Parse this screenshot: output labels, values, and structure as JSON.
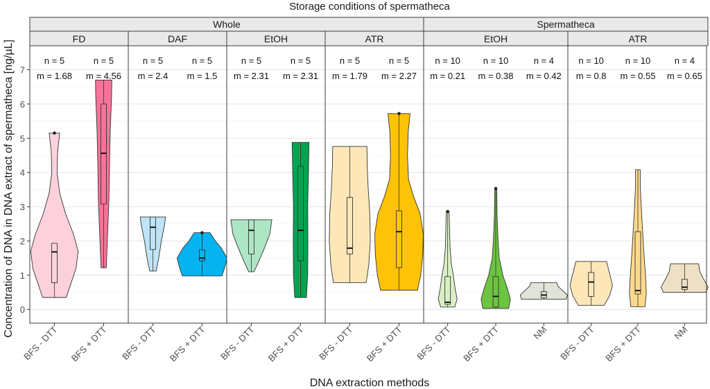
{
  "chart_data": {
    "type": "violin",
    "title": "Storage conditions of spermatheca",
    "xlabel": "DNA extraction methods",
    "ylabel": "Concentration of DNA in DNA extract of spermatheca  [ng/µL]",
    "ylim": [
      -0.4,
      7.7
    ],
    "yticks": [
      0,
      1,
      2,
      3,
      4,
      5,
      6,
      7
    ],
    "grid": true,
    "groups": [
      {
        "label": "Whole",
        "panels": [
          "FD",
          "DAF",
          "EtOH",
          "ATR"
        ]
      },
      {
        "label": "Spermatheca",
        "panels": [
          "EtOH",
          "ATR"
        ]
      }
    ],
    "panels": [
      {
        "group": "Whole",
        "label": "FD",
        "series": [
          {
            "method": "BFS - DTT",
            "n_label": "n = 5",
            "m_label": "m = 1.68",
            "fill": "#fcd1dc",
            "min": 0.35,
            "max": 5.15,
            "q1": 0.78,
            "median": 1.68,
            "q3": 1.93,
            "wlo": 0.35,
            "whi": 1.93,
            "outliers": [
              5.15
            ],
            "profile": [
              [
                0.35,
                0.45
              ],
              [
                0.7,
                0.6
              ],
              [
                1.2,
                0.82
              ],
              [
                1.7,
                0.9
              ],
              [
                2.2,
                0.72
              ],
              [
                2.8,
                0.42
              ],
              [
                3.4,
                0.2
              ],
              [
                4.0,
                0.1
              ],
              [
                4.6,
                0.12
              ],
              [
                5.15,
                0.2
              ]
            ]
          },
          {
            "method": "BFS + DTT",
            "n_label": "n = 5",
            "m_label": "m = 4.56",
            "fill": "#f77399",
            "min": 1.22,
            "max": 6.7,
            "q1": 3.08,
            "median": 4.56,
            "q3": 6.0,
            "wlo": 1.22,
            "whi": 6.7,
            "outliers": [],
            "profile": [
              [
                1.22,
                0.1
              ],
              [
                2.2,
                0.15
              ],
              [
                3.2,
                0.2
              ],
              [
                4.2,
                0.22
              ],
              [
                5.2,
                0.25
              ],
              [
                6.2,
                0.3
              ],
              [
                6.7,
                0.31
              ]
            ]
          }
        ]
      },
      {
        "group": "Whole",
        "label": "DAF",
        "series": [
          {
            "method": "BFS - DTT",
            "n_label": "n = 5",
            "m_label": "m = 2.4",
            "fill": "#bfe3f7",
            "min": 1.12,
            "max": 2.7,
            "q1": 1.75,
            "median": 2.4,
            "q3": 2.7,
            "wlo": 1.12,
            "whi": 2.7,
            "outliers": [],
            "profile": [
              [
                1.12,
                0.12
              ],
              [
                1.5,
                0.22
              ],
              [
                2.0,
                0.32
              ],
              [
                2.5,
                0.45
              ],
              [
                2.7,
                0.48
              ]
            ]
          },
          {
            "method": "BFS + DTT",
            "n_label": "n = 5",
            "m_label": "m = 1.5",
            "fill": "#04b3ef",
            "min": 0.98,
            "max": 2.24,
            "q1": 1.42,
            "median": 1.5,
            "q3": 1.74,
            "wlo": 0.98,
            "whi": 2.24,
            "outliers": [
              2.24
            ],
            "profile": [
              [
                0.98,
                0.75
              ],
              [
                1.2,
                0.85
              ],
              [
                1.5,
                0.95
              ],
              [
                1.8,
                0.72
              ],
              [
                2.0,
                0.5
              ],
              [
                2.24,
                0.3
              ]
            ]
          }
        ]
      },
      {
        "group": "Whole",
        "label": "EtOH",
        "series": [
          {
            "method": "BFS - DTT",
            "n_label": "n = 5",
            "m_label": "m = 2.31",
            "fill": "#aee6c5",
            "min": 1.1,
            "max": 2.62,
            "q1": 1.62,
            "median": 2.31,
            "q3": 2.62,
            "wlo": 1.1,
            "whi": 2.62,
            "outliers": [],
            "profile": [
              [
                1.1,
                0.1
              ],
              [
                1.4,
                0.28
              ],
              [
                1.8,
                0.5
              ],
              [
                2.2,
                0.7
              ],
              [
                2.62,
                0.78
              ]
            ]
          },
          {
            "method": "BFS + DTT",
            "n_label": "n = 5",
            "m_label": "m = 2.31",
            "fill": "#03a451",
            "min": 0.35,
            "max": 4.88,
            "q1": 1.42,
            "median": 2.31,
            "q3": 4.18,
            "wlo": 0.35,
            "whi": 4.88,
            "outliers": [],
            "profile": [
              [
                0.35,
                0.22
              ],
              [
                1.0,
                0.27
              ],
              [
                2.0,
                0.28
              ],
              [
                3.0,
                0.27
              ],
              [
                4.0,
                0.3
              ],
              [
                4.88,
                0.32
              ]
            ]
          }
        ]
      },
      {
        "group": "Whole",
        "label": "ATR",
        "series": [
          {
            "method": "BFS - DTT",
            "n_label": "n = 5",
            "m_label": "m = 1.79",
            "fill": "#fde7b8",
            "min": 0.78,
            "max": 4.76,
            "q1": 1.62,
            "median": 1.79,
            "q3": 3.27,
            "wlo": 0.78,
            "whi": 4.76,
            "outliers": [],
            "profile": [
              [
                0.78,
                0.62
              ],
              [
                1.3,
                0.72
              ],
              [
                2.0,
                0.78
              ],
              [
                2.8,
                0.76
              ],
              [
                3.5,
                0.7
              ],
              [
                4.2,
                0.66
              ],
              [
                4.76,
                0.65
              ]
            ]
          },
          {
            "method": "BFS + DTT",
            "n_label": "n = 5",
            "m_label": "m = 2.27",
            "fill": "#fec306",
            "min": 0.56,
            "max": 5.72,
            "q1": 1.22,
            "median": 2.27,
            "q3": 2.88,
            "wlo": 0.56,
            "whi": 5.72,
            "outliers": [
              5.72
            ],
            "profile": [
              [
                0.56,
                0.7
              ],
              [
                1.0,
                0.82
              ],
              [
                1.6,
                0.9
              ],
              [
                2.2,
                0.92
              ],
              [
                2.8,
                0.8
              ],
              [
                3.3,
                0.55
              ],
              [
                3.8,
                0.36
              ],
              [
                4.5,
                0.32
              ],
              [
                5.2,
                0.35
              ],
              [
                5.72,
                0.42
              ]
            ]
          }
        ]
      },
      {
        "group": "Spermatheca",
        "label": "EtOH",
        "series": [
          {
            "method": "BFS - DTT",
            "n_label": "n = 10",
            "m_label": "m = 0.21",
            "fill": "#d9f0c6",
            "min": 0.07,
            "max": 2.86,
            "q1": 0.15,
            "median": 0.21,
            "q3": 0.96,
            "wlo": 0.07,
            "whi": 2.86,
            "outliers": [
              2.86
            ],
            "profile": [
              [
                0.07,
                0.3
              ],
              [
                0.3,
                0.4
              ],
              [
                0.6,
                0.32
              ],
              [
                1.0,
                0.24
              ],
              [
                1.3,
                0.16
              ],
              [
                1.8,
                0.1
              ],
              [
                2.3,
                0.08
              ],
              [
                2.86,
                0.06
              ]
            ]
          },
          {
            "method": "BFS + DTT",
            "n_label": "n = 10",
            "m_label": "m = 0.38",
            "fill": "#6dc440",
            "min": 0.03,
            "max": 3.53,
            "q1": 0.07,
            "median": 0.38,
            "q3": 0.96,
            "wlo": 0.03,
            "whi": 3.53,
            "outliers": [
              3.53
            ],
            "profile": [
              [
                0.03,
                0.55
              ],
              [
                0.3,
                0.62
              ],
              [
                0.6,
                0.5
              ],
              [
                1.0,
                0.3
              ],
              [
                1.5,
                0.15
              ],
              [
                2.0,
                0.1
              ],
              [
                2.7,
                0.06
              ],
              [
                3.53,
                0.04
              ]
            ]
          },
          {
            "method": "NM",
            "n_label": "n = 4",
            "m_label": "m = 0.42",
            "fill": "#dfe3d8",
            "min": 0.3,
            "max": 0.78,
            "q1": 0.34,
            "median": 0.42,
            "q3": 0.52,
            "wlo": 0.3,
            "whi": 0.78,
            "outliers": [],
            "profile": [
              [
                0.3,
                0.95
              ],
              [
                0.42,
                1.0
              ],
              [
                0.55,
                0.8
              ],
              [
                0.68,
                0.6
              ],
              [
                0.78,
                0.55
              ]
            ]
          }
        ]
      },
      {
        "group": "Spermatheca",
        "label": "ATR",
        "series": [
          {
            "method": "BFS - DTT",
            "n_label": "n = 10",
            "m_label": "m = 0.8",
            "fill": "#fde7b8",
            "min": 0.12,
            "max": 1.4,
            "q1": 0.38,
            "median": 0.8,
            "q3": 1.08,
            "wlo": 0.12,
            "whi": 1.4,
            "outliers": [],
            "profile": [
              [
                0.12,
                0.55
              ],
              [
                0.4,
                0.78
              ],
              [
                0.7,
                0.9
              ],
              [
                1.0,
                0.8
              ],
              [
                1.4,
                0.65
              ]
            ]
          },
          {
            "method": "BFS + DTT",
            "n_label": "n = 10",
            "m_label": "m = 0.55",
            "fill": "#fed98c",
            "min": 0.08,
            "max": 4.08,
            "q1": 0.45,
            "median": 0.55,
            "q3": 2.27,
            "wlo": 0.08,
            "whi": 4.08,
            "outliers": [],
            "profile": [
              [
                0.08,
                0.3
              ],
              [
                0.5,
                0.36
              ],
              [
                1.0,
                0.32
              ],
              [
                1.6,
                0.26
              ],
              [
                2.3,
                0.2
              ],
              [
                3.0,
                0.14
              ],
              [
                3.6,
                0.1
              ],
              [
                4.08,
                0.1
              ]
            ]
          },
          {
            "method": "NM",
            "n_label": "n = 4",
            "m_label": "m = 0.65",
            "fill": "#ede0c4",
            "min": 0.5,
            "max": 1.33,
            "q1": 0.58,
            "median": 0.65,
            "q3": 0.88,
            "wlo": 0.5,
            "whi": 1.33,
            "outliers": [],
            "profile": [
              [
                0.5,
                0.9
              ],
              [
                0.65,
                1.0
              ],
              [
                0.9,
                0.8
              ],
              [
                1.1,
                0.65
              ],
              [
                1.33,
                0.6
              ]
            ]
          }
        ]
      }
    ]
  }
}
